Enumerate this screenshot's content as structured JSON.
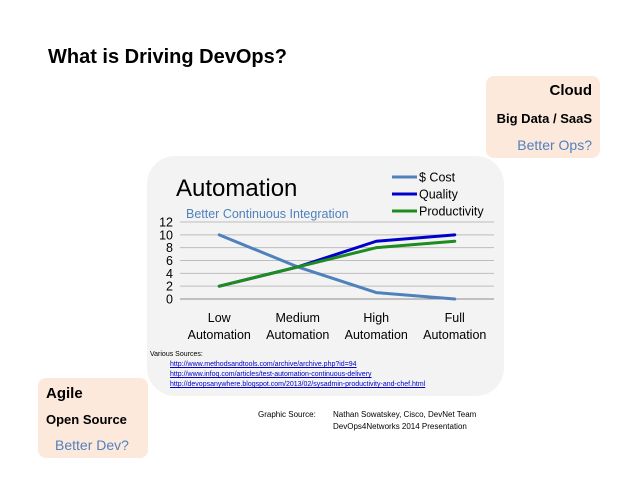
{
  "slide": {
    "title": "What is Driving DevOps?"
  },
  "callouts": {
    "cloud": {
      "line1": "Cloud",
      "line2": "Big Data / SaaS",
      "line3": "Better Ops?"
    },
    "agile": {
      "line1": "Agile",
      "line2": "Open Source",
      "line3": "Better Dev?"
    }
  },
  "colors": {
    "callout_bg": "#fce9dc",
    "accent": "#4f81bd",
    "panel_bg": "#f3f3f3"
  },
  "chart_data": {
    "type": "line",
    "title": "Automation",
    "subtitle": "Better Continuous Integration",
    "categories": [
      [
        "Low",
        "Automation"
      ],
      [
        "Medium",
        "Automation"
      ],
      [
        "High",
        "Automation"
      ],
      [
        "Full",
        "Automation"
      ]
    ],
    "series": [
      {
        "name": "$ Cost",
        "color": "#4f81bd",
        "values": [
          10,
          5,
          1,
          0
        ]
      },
      {
        "name": "Quality",
        "color": "#0000cc",
        "values": [
          2,
          5,
          9,
          10
        ]
      },
      {
        "name": "Productivity",
        "color": "#1e8c1e",
        "values": [
          2,
          5,
          8,
          9
        ]
      }
    ],
    "ylim": [
      0,
      12
    ],
    "yticks": [
      0,
      2,
      4,
      6,
      8,
      10,
      12
    ],
    "grid": true,
    "legend": "top-right"
  },
  "sources": {
    "label": "Various Sources:",
    "links": [
      "http://www.methodsandtools.com/archive/archive.php?id=94",
      "http://www.infoq.com/articles/test-automation-continuous-delivery",
      "http://devopsanywhere.blogspot.com/2013/02/sysadmin-productivity-and-chef.html"
    ]
  },
  "credit": {
    "label": "Graphic Source:",
    "line1": "Nathan Sowatskey, Cisco, DevNet Team",
    "line2": "DevOps4Networks 2014 Presentation"
  }
}
